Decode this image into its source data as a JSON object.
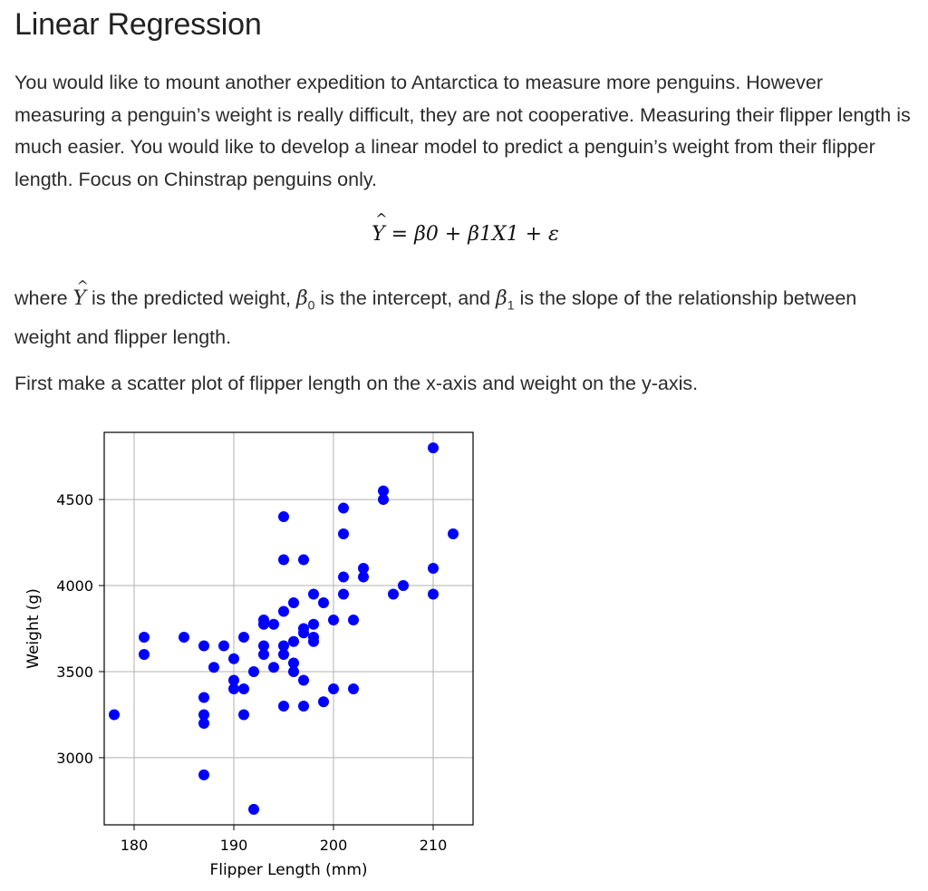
{
  "page": {
    "title": "Linear Regression",
    "intro": "You would like to mount another expedition to Antarctica to measure more penguins. However measuring a penguin’s weight is really difficult, they are not cooperative. Measuring their flipper length is much easier. You would like to develop a linear model to predict a penguin’s weight from their flipper length. Focus on Chinstrap penguins only.",
    "equation": {
      "lhs": "Y",
      "rhs": "= β0 + β1X1 + ε"
    },
    "where": {
      "part1": "where ",
      "var_y": "Y",
      "part2": " is the predicted weight, ",
      "var_b0": "β",
      "sub0": "0",
      "part3": " is the intercept, and ",
      "var_b1": "β",
      "sub1": "1",
      "part4": " is the slope of the relationship between weight and flipper length."
    },
    "instruction": "First make a scatter plot of flipper length on the x-axis and weight on the y-axis."
  },
  "chart_data": {
    "type": "scatter",
    "xlabel": "Flipper Length (mm)",
    "ylabel": "Weight (g)",
    "xlim": [
      177,
      214
    ],
    "ylim": [
      2610,
      4890
    ],
    "xticks": [
      180,
      190,
      200,
      210
    ],
    "yticks": [
      3000,
      3500,
      4000,
      4500
    ],
    "grid": true,
    "marker_color": "#0000ff",
    "points": [
      [
        178,
        3250
      ],
      [
        181,
        3700
      ],
      [
        181,
        3600
      ],
      [
        185,
        3700
      ],
      [
        187,
        3650
      ],
      [
        187,
        3350
      ],
      [
        187,
        3250
      ],
      [
        187,
        3200
      ],
      [
        187,
        2900
      ],
      [
        188,
        3525
      ],
      [
        189,
        3650
      ],
      [
        190,
        3575
      ],
      [
        190,
        3450
      ],
      [
        190,
        3400
      ],
      [
        191,
        3700
      ],
      [
        191,
        3400
      ],
      [
        191,
        3250
      ],
      [
        192,
        3500
      ],
      [
        192,
        2700
      ],
      [
        193,
        3800
      ],
      [
        193,
        3775
      ],
      [
        193,
        3650
      ],
      [
        193,
        3600
      ],
      [
        194,
        3775
      ],
      [
        194,
        3525
      ],
      [
        195,
        4400
      ],
      [
        195,
        4150
      ],
      [
        195,
        3850
      ],
      [
        195,
        3650
      ],
      [
        195,
        3600
      ],
      [
        195,
        3300
      ],
      [
        196,
        3900
      ],
      [
        196,
        3675
      ],
      [
        196,
        3550
      ],
      [
        196,
        3500
      ],
      [
        197,
        4150
      ],
      [
        197,
        3750
      ],
      [
        197,
        3725
      ],
      [
        197,
        3450
      ],
      [
        197,
        3300
      ],
      [
        198,
        3950
      ],
      [
        198,
        3775
      ],
      [
        198,
        3700
      ],
      [
        198,
        3675
      ],
      [
        199,
        3900
      ],
      [
        199,
        3325
      ],
      [
        200,
        3800
      ],
      [
        200,
        3400
      ],
      [
        201,
        4450
      ],
      [
        201,
        4300
      ],
      [
        201,
        4050
      ],
      [
        201,
        3950
      ],
      [
        202,
        3800
      ],
      [
        202,
        3400
      ],
      [
        203,
        4100
      ],
      [
        203,
        4050
      ],
      [
        205,
        4550
      ],
      [
        205,
        4500
      ],
      [
        206,
        3950
      ],
      [
        207,
        4000
      ],
      [
        210,
        4800
      ],
      [
        210,
        4100
      ],
      [
        210,
        3950
      ],
      [
        212,
        4300
      ]
    ]
  }
}
